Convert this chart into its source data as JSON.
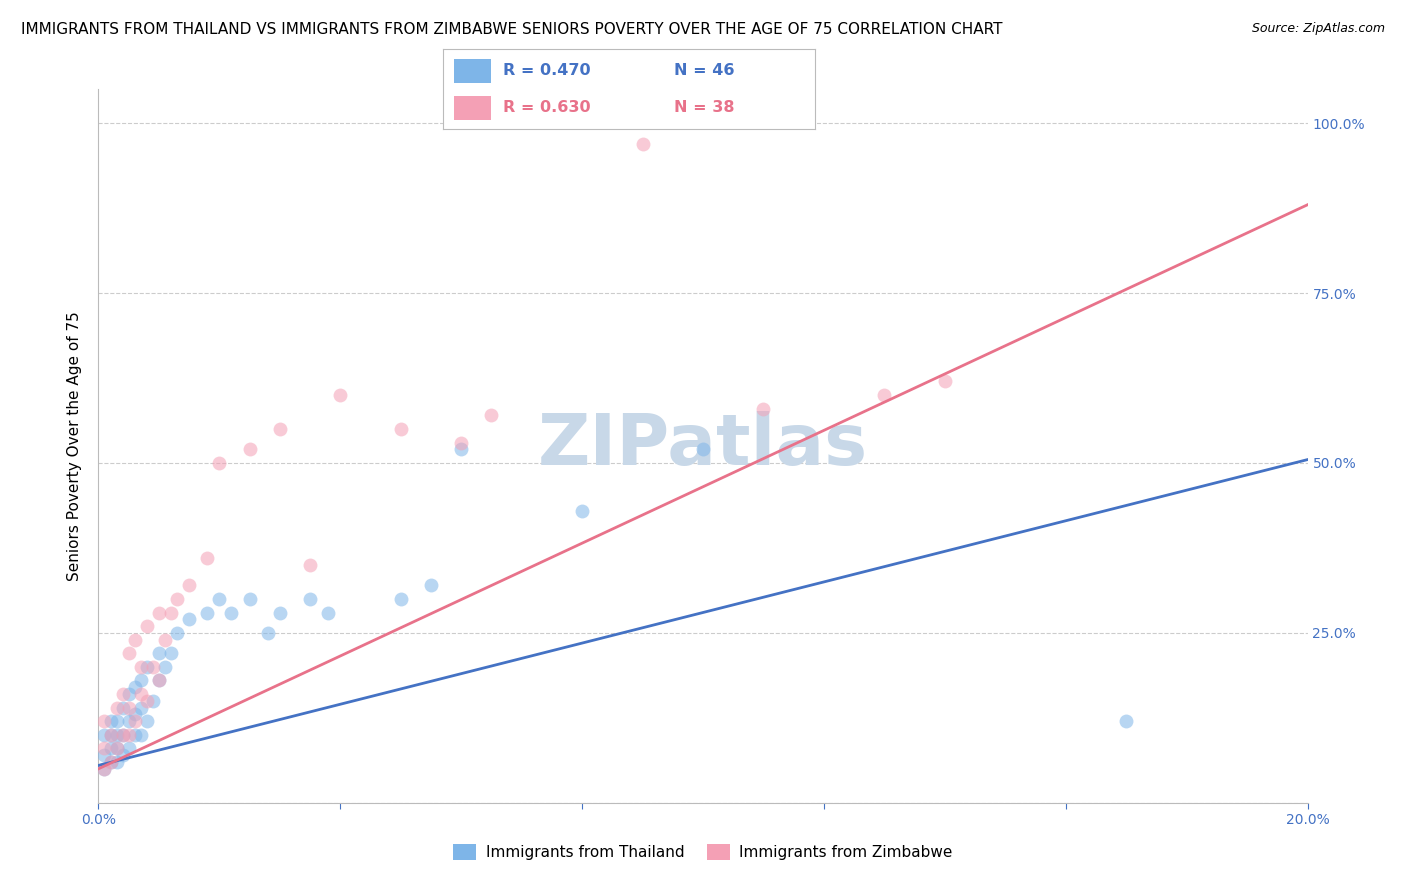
{
  "title": "IMMIGRANTS FROM THAILAND VS IMMIGRANTS FROM ZIMBABWE SENIORS POVERTY OVER THE AGE OF 75 CORRELATION CHART",
  "source": "Source: ZipAtlas.com",
  "ylabel": "Seniors Poverty Over the Age of 75",
  "xlim": [
    0.0,
    0.2
  ],
  "ylim": [
    0.0,
    1.05
  ],
  "x_tick_pos": [
    0.0,
    0.04,
    0.08,
    0.12,
    0.16,
    0.2
  ],
  "x_tick_labels": [
    "0.0%",
    "",
    "",
    "",
    "",
    "20.0%"
  ],
  "y_tick_pos": [
    0.0,
    0.25,
    0.5,
    0.75,
    1.0
  ],
  "y_tick_labels_right": [
    "",
    "25.0%",
    "50.0%",
    "75.0%",
    "100.0%"
  ],
  "thailand_x": [
    0.001,
    0.001,
    0.001,
    0.002,
    0.002,
    0.002,
    0.002,
    0.003,
    0.003,
    0.003,
    0.003,
    0.004,
    0.004,
    0.004,
    0.005,
    0.005,
    0.005,
    0.006,
    0.006,
    0.006,
    0.007,
    0.007,
    0.007,
    0.008,
    0.008,
    0.009,
    0.01,
    0.01,
    0.011,
    0.012,
    0.013,
    0.015,
    0.018,
    0.02,
    0.022,
    0.025,
    0.028,
    0.03,
    0.035,
    0.038,
    0.05,
    0.055,
    0.06,
    0.08,
    0.1,
    0.17
  ],
  "thailand_y": [
    0.05,
    0.07,
    0.1,
    0.06,
    0.08,
    0.1,
    0.12,
    0.06,
    0.08,
    0.1,
    0.12,
    0.07,
    0.1,
    0.14,
    0.08,
    0.12,
    0.16,
    0.1,
    0.13,
    0.17,
    0.1,
    0.14,
    0.18,
    0.12,
    0.2,
    0.15,
    0.18,
    0.22,
    0.2,
    0.22,
    0.25,
    0.27,
    0.28,
    0.3,
    0.28,
    0.3,
    0.25,
    0.28,
    0.3,
    0.28,
    0.3,
    0.32,
    0.52,
    0.43,
    0.52,
    0.12
  ],
  "zimbabwe_x": [
    0.001,
    0.001,
    0.001,
    0.002,
    0.002,
    0.003,
    0.003,
    0.004,
    0.004,
    0.005,
    0.005,
    0.005,
    0.006,
    0.006,
    0.007,
    0.007,
    0.008,
    0.008,
    0.009,
    0.01,
    0.01,
    0.011,
    0.012,
    0.013,
    0.015,
    0.018,
    0.02,
    0.025,
    0.03,
    0.035,
    0.04,
    0.05,
    0.06,
    0.065,
    0.09,
    0.11,
    0.13,
    0.14
  ],
  "zimbabwe_y": [
    0.05,
    0.08,
    0.12,
    0.06,
    0.1,
    0.08,
    0.14,
    0.1,
    0.16,
    0.1,
    0.14,
    0.22,
    0.12,
    0.24,
    0.16,
    0.2,
    0.15,
    0.26,
    0.2,
    0.18,
    0.28,
    0.24,
    0.28,
    0.3,
    0.32,
    0.36,
    0.5,
    0.52,
    0.55,
    0.35,
    0.6,
    0.55,
    0.53,
    0.57,
    0.97,
    0.58,
    0.6,
    0.62
  ],
  "thailand_R": 0.47,
  "thailand_N": 46,
  "zimbabwe_R": 0.63,
  "zimbabwe_N": 38,
  "thailand_color": "#7EB5E8",
  "zimbabwe_color": "#F4A0B5",
  "thailand_line_color": "#4472C4",
  "zimbabwe_line_color": "#E8728A",
  "watermark": "ZIPatlas",
  "watermark_color": "#C8D8E8",
  "title_fontsize": 11,
  "source_fontsize": 9,
  "axis_label_fontsize": 11,
  "tick_fontsize": 10,
  "legend_fontsize": 12,
  "watermark_fontsize": 52,
  "background_color": "#FFFFFF",
  "grid_color": "#CCCCCC",
  "tick_color": "#4472C4"
}
